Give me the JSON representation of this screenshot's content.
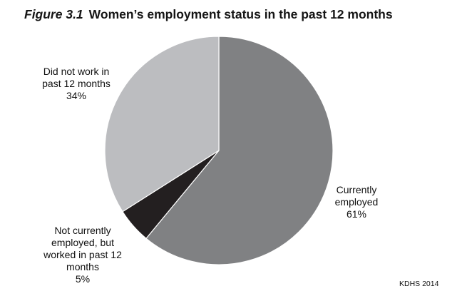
{
  "figure_label": "Figure 3.1",
  "title": "Women’s employment status in the past 12 months",
  "source": "KDHS 2014",
  "chart_data": {
    "type": "pie",
    "title": "Women’s employment status in the past 12 months",
    "start": "12 o'clock, clockwise",
    "slices": [
      {
        "label_lines": [
          "Currently",
          "employed"
        ],
        "value": 61,
        "value_label": "61%",
        "color": "#808183"
      },
      {
        "label_lines": [
          "Not currently",
          "employed, but",
          "worked in past 12",
          "months"
        ],
        "value": 5,
        "value_label": "5%",
        "color": "#231f20"
      },
      {
        "label_lines": [
          "Did not work in",
          "past 12 months"
        ],
        "value": 34,
        "value_label": "34%",
        "color": "#bcbdc0"
      }
    ]
  }
}
